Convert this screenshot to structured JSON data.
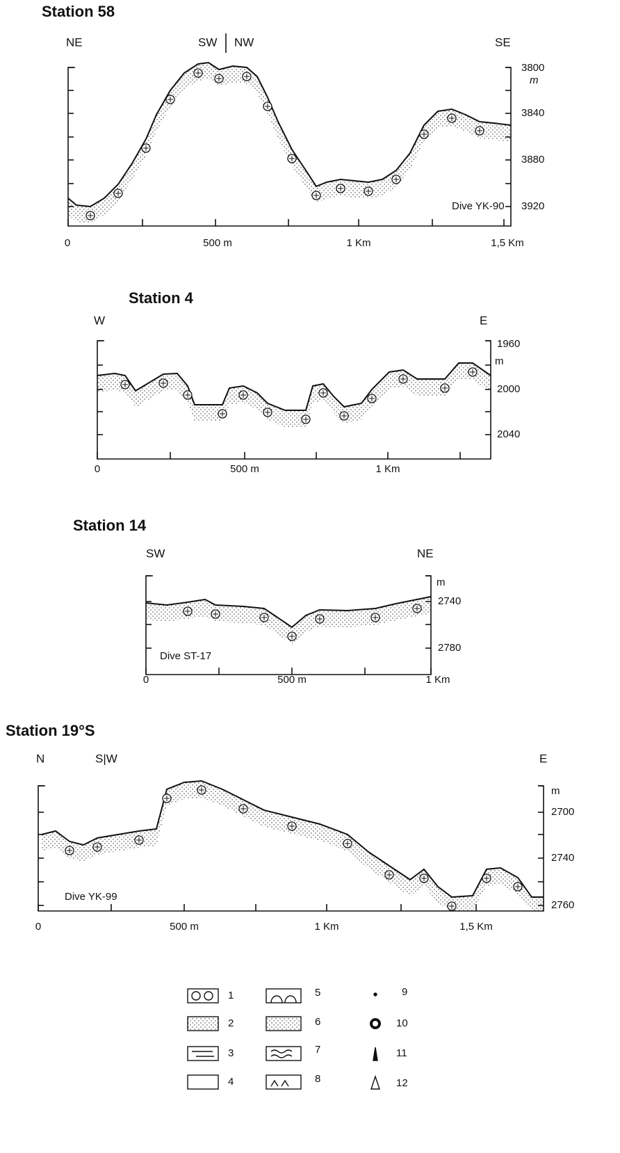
{
  "panels": [
    {
      "title": "Station 58",
      "directions": [
        "NE",
        "SW",
        "NW",
        "SE"
      ],
      "depth_labels": [
        "3800",
        "m",
        "3840",
        "3880",
        "3920"
      ],
      "distance_labels": [
        "0",
        "500 m",
        "1 Km",
        "1,5 Km"
      ],
      "dive": "Dive YK-90"
    },
    {
      "title": "Station 4",
      "directions": [
        "W",
        "E"
      ],
      "depth_labels": [
        "1960",
        "m",
        "2000",
        "2040"
      ],
      "distance_labels": [
        "0",
        "500 m",
        "1 Km"
      ]
    },
    {
      "title": "Station 14",
      "directions": [
        "SW",
        "NE"
      ],
      "depth_labels": [
        "m",
        "2740",
        "2780"
      ],
      "distance_labels": [
        "0",
        "500 m",
        "1 Km"
      ],
      "dive": "Dive ST-17"
    },
    {
      "title": "Station 19°S",
      "directions": [
        "N",
        "S|W",
        "E"
      ],
      "depth_labels": [
        "m",
        "2700",
        "2740",
        "2760"
      ],
      "distance_labels": [
        "0",
        "500 m",
        "1 Km",
        "1,5 Km"
      ],
      "dive": "Dive YK-99"
    }
  ],
  "legend": [
    "1",
    "2",
    "3",
    "4",
    "5",
    "6",
    "7",
    "8",
    "9",
    "10",
    "11",
    "12"
  ]
}
